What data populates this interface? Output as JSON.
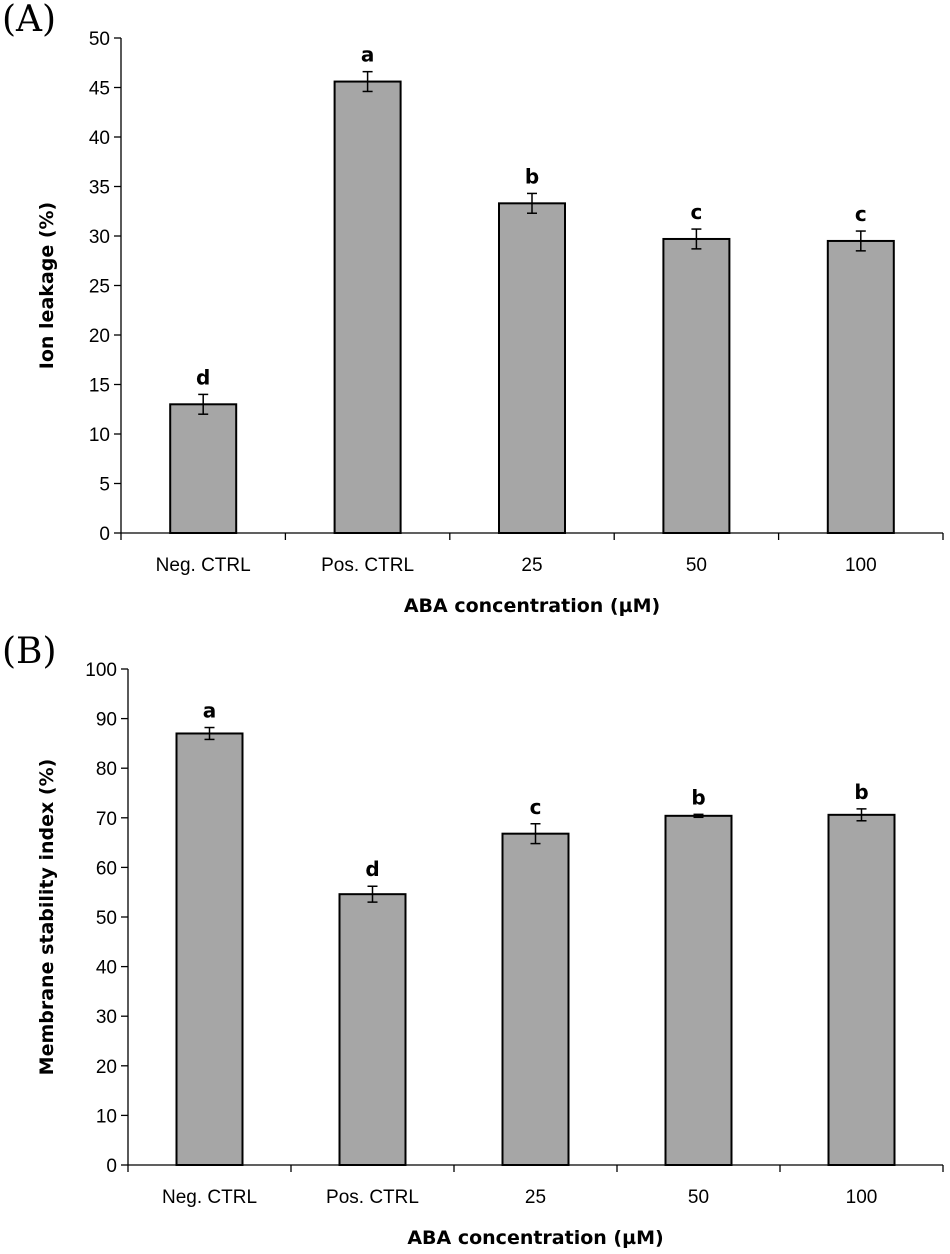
{
  "chart_data": [
    {
      "panel_label": "(A)",
      "type": "bar",
      "categories": [
        "Neg. CTRL",
        "Pos. CTRL",
        "25",
        "50",
        "100"
      ],
      "values": [
        13.0,
        45.6,
        33.3,
        29.7,
        29.5
      ],
      "errors": [
        1.0,
        1.0,
        1.0,
        1.0,
        1.0
      ],
      "significance": [
        "d",
        "a",
        "b",
        "c",
        "c"
      ],
      "ylim": [
        0,
        50
      ],
      "ytick_step": 5,
      "yticks": [
        "0",
        "5",
        "10",
        "15",
        "20",
        "25",
        "30",
        "35",
        "40",
        "45",
        "50"
      ],
      "xlabel": "ABA concentration (µM)",
      "ylabel": "Ion leakage (%)",
      "bar_color": "#a6a6a6",
      "grid": false
    },
    {
      "panel_label": "(B)",
      "type": "bar",
      "categories": [
        "Neg. CTRL",
        "Pos. CTRL",
        "25",
        "50",
        "100"
      ],
      "values": [
        87.0,
        54.6,
        66.8,
        70.4,
        70.6
      ],
      "errors": [
        1.2,
        1.6,
        2.0,
        0.3,
        1.2
      ],
      "significance": [
        "a",
        "d",
        "c",
        "b",
        "b"
      ],
      "ylim": [
        0,
        100
      ],
      "ytick_step": 10,
      "yticks": [
        "0",
        "10",
        "20",
        "30",
        "40",
        "50",
        "60",
        "70",
        "80",
        "90",
        "100"
      ],
      "xlabel": "ABA concentration (µM)",
      "ylabel": "Membrane stability index (%)",
      "bar_color": "#a6a6a6",
      "grid": false
    }
  ]
}
